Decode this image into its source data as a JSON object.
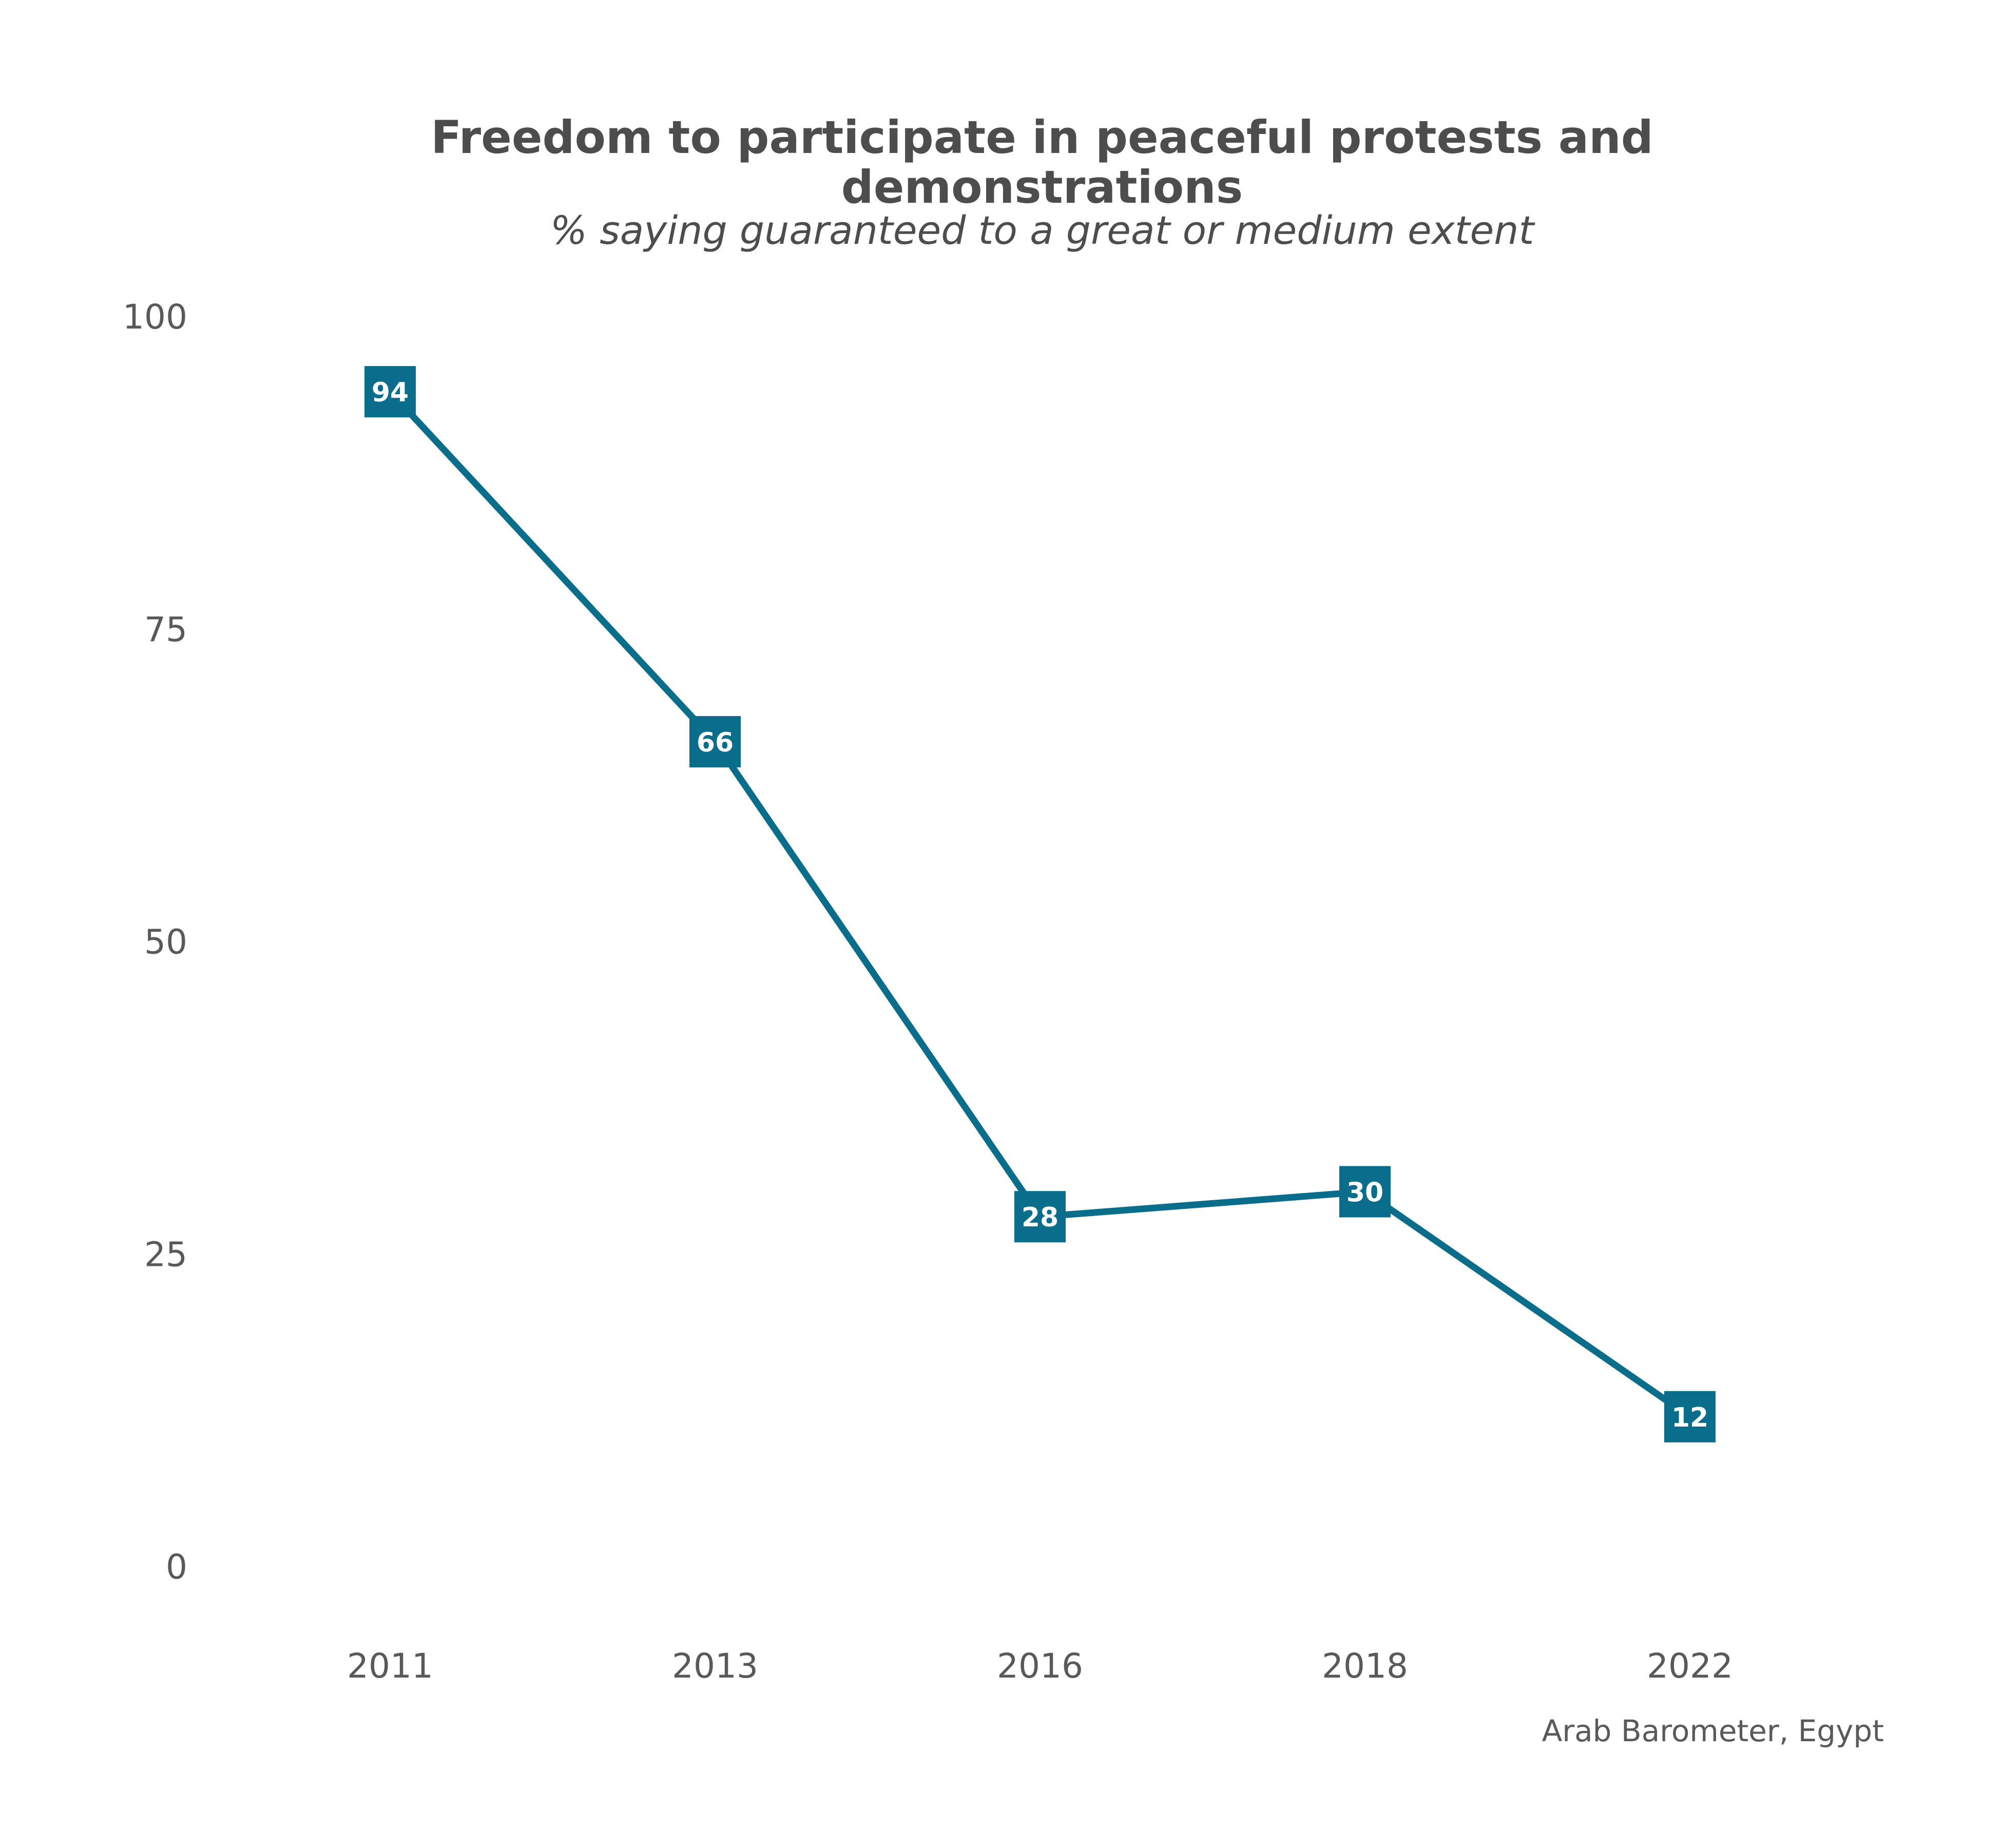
{
  "chart_data": {
    "type": "line",
    "title_lines": [
      "Freedom to participate in peaceful protests and",
      "demonstrations"
    ],
    "subtitle": "% saying guaranteed to a great or medium extent",
    "caption": "Arab Barometer, Egypt",
    "categories": [
      "2011",
      "2013",
      "2016",
      "2018",
      "2022"
    ],
    "values": [
      94,
      66,
      28,
      30,
      12
    ],
    "data_labels": [
      "94",
      "66",
      "28",
      "30",
      "12"
    ],
    "yticks": [
      0,
      25,
      50,
      75,
      100
    ],
    "ytick_labels": [
      "0",
      "25",
      "50",
      "75",
      "100"
    ],
    "ylim": [
      0,
      100
    ],
    "grid": false,
    "legend": false,
    "color": "#0a6d8a"
  }
}
